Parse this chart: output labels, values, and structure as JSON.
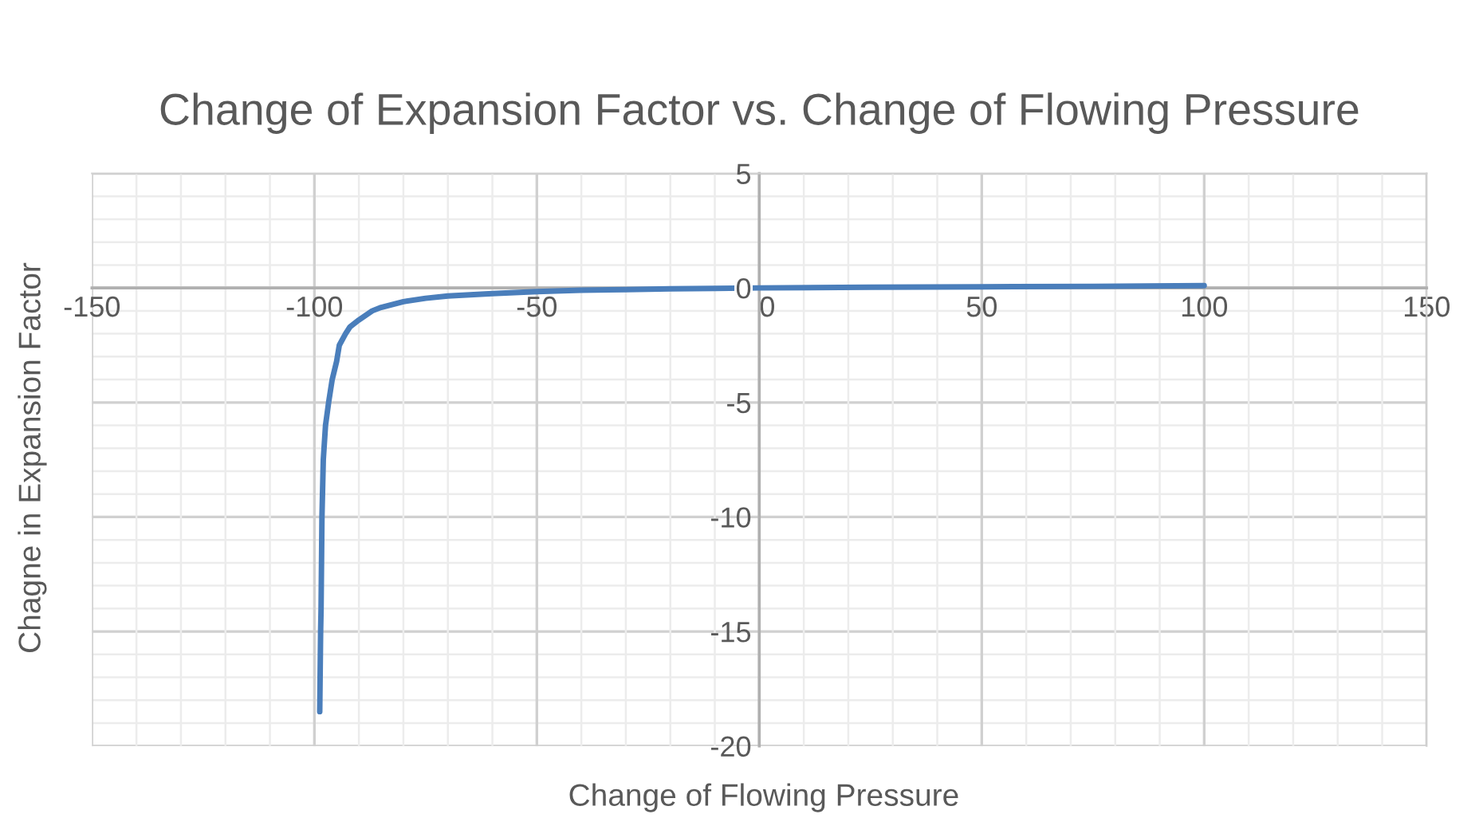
{
  "chart_data": {
    "type": "line",
    "title": "Change of Expansion Factor vs. Change of Flowing Pressure",
    "xlabel": "Change of Flowing Pressure",
    "ylabel": "Chagne in Expansion Factor",
    "xlim": [
      -150,
      150
    ],
    "xticks": [
      -150,
      -100,
      -50,
      0,
      50,
      100,
      150
    ],
    "ylim": [
      -20,
      5
    ],
    "yticks": [
      -20,
      -15,
      -10,
      -5,
      0,
      5
    ],
    "grid": true,
    "marker": "none",
    "line_style": "solid",
    "series": [
      {
        "color": "#4a7ebb",
        "x": [
          -98.8,
          -98.6,
          -98.5,
          -98.3,
          -98.0,
          -97.5,
          -96.8,
          -96.0,
          -95.0,
          -94.4,
          -93.0,
          -92.0,
          -90.0,
          -87.0,
          -85.0,
          -80.0,
          -75.0,
          -70.0,
          -60.0,
          -50.0,
          -40.0,
          -30.0,
          -20.0,
          -10.0,
          0,
          25,
          50,
          75,
          100
        ],
        "values": [
          -18.5,
          -15,
          -14,
          -10,
          -7.5,
          -6,
          -5,
          -4,
          -3.2,
          -2.5,
          -2,
          -1.7,
          -1.4,
          -1,
          -0.85,
          -0.6,
          -0.45,
          -0.35,
          -0.25,
          -0.16,
          -0.1,
          -0.07,
          -0.04,
          -0.02,
          0,
          0.03,
          0.05,
          0.07,
          0.1
        ]
      }
    ]
  }
}
